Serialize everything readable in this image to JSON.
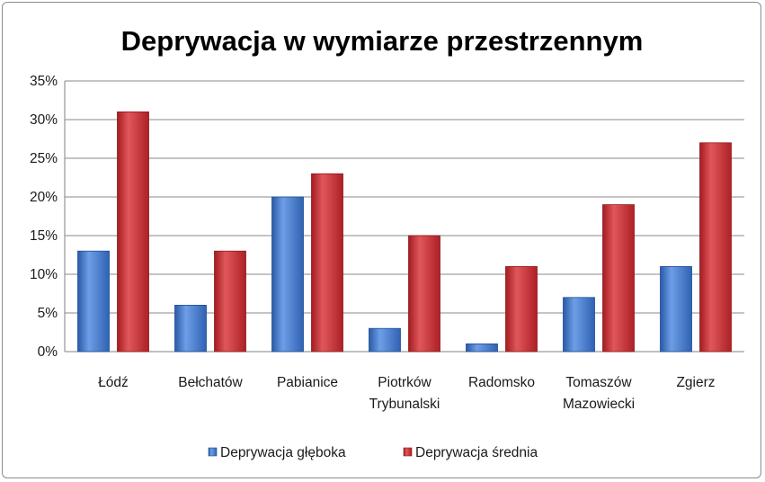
{
  "chart_data": {
    "type": "bar",
    "title": "Deprywacja w wymiarze przestrzennym",
    "xlabel": "",
    "ylabel": "",
    "ylim": [
      0,
      35
    ],
    "yticks": [
      0,
      5,
      10,
      15,
      20,
      25,
      30,
      35
    ],
    "tick_suffix": "%",
    "grid": true,
    "legend_position": "bottom",
    "categories": [
      [
        "Łódź"
      ],
      [
        "Bełchatów"
      ],
      [
        "Pabianice"
      ],
      [
        "Piotrków",
        "Trybunalski"
      ],
      [
        "Radomsko"
      ],
      [
        "Tomaszów",
        "Mazowiecki"
      ],
      [
        "Zgierz"
      ]
    ],
    "series": [
      {
        "name": "Deprywacja głęboka",
        "color": "#3b6fc4",
        "values": [
          13,
          6,
          20,
          3,
          1,
          7,
          11
        ]
      },
      {
        "name": "Deprywacja średnia",
        "color": "#c0262b",
        "values": [
          31,
          13,
          23,
          15,
          11,
          19,
          27
        ]
      }
    ]
  }
}
